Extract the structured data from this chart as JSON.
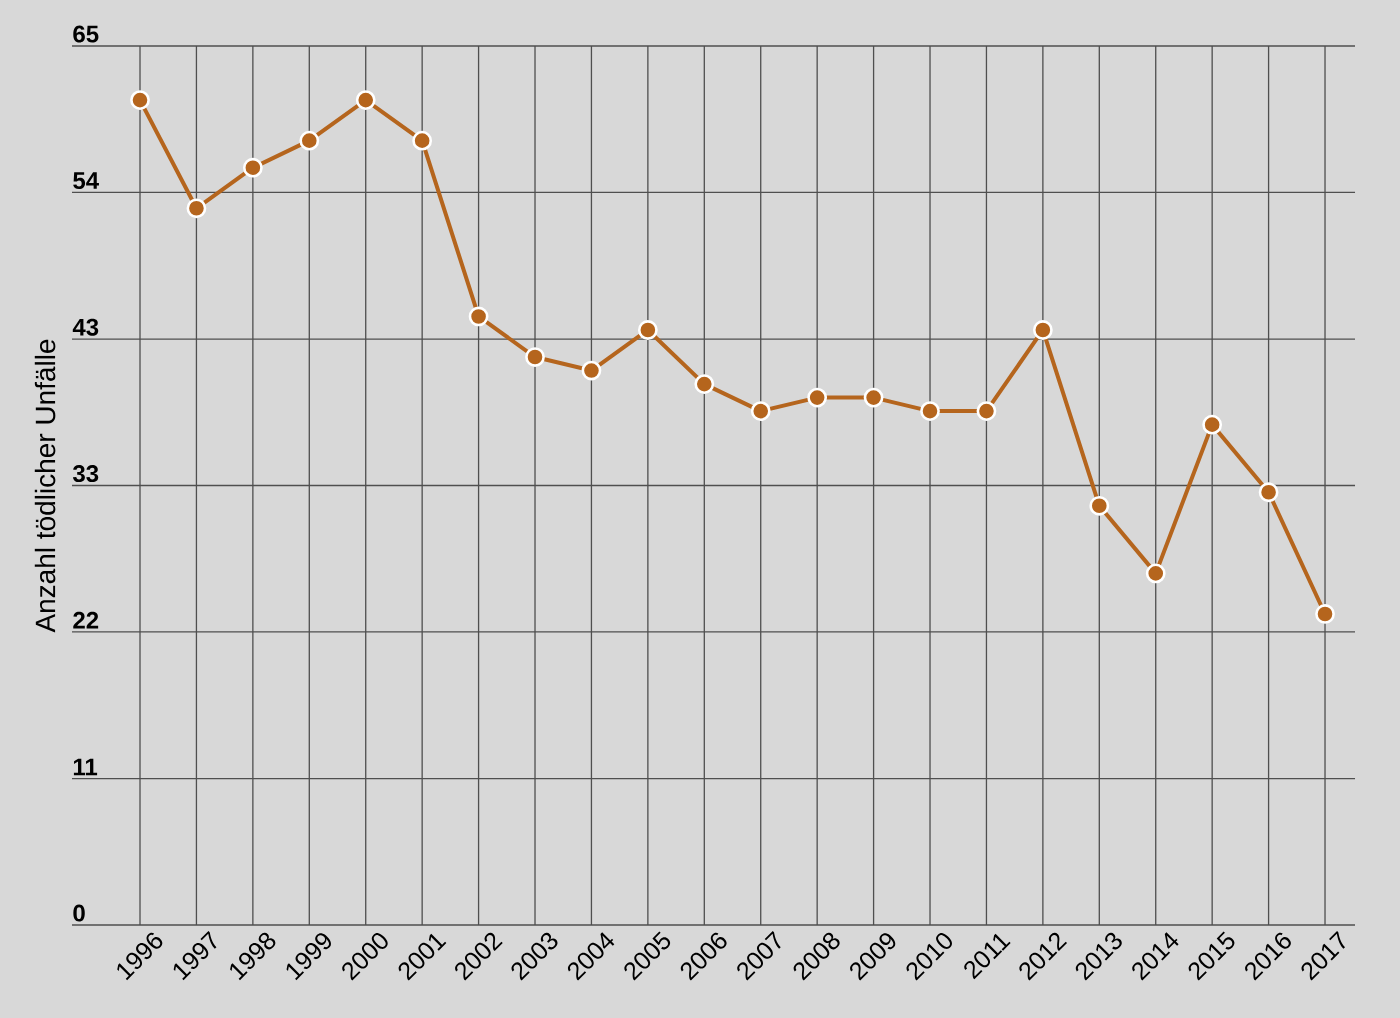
{
  "chart_data": {
    "type": "line",
    "ylabel": "Anzahl tödlicher Unfälle",
    "categories": [
      "1996",
      "1997",
      "1998",
      "1999",
      "2000",
      "2001",
      "2002",
      "2003",
      "2004",
      "2005",
      "2006",
      "2007",
      "2008",
      "2009",
      "2010",
      "2011",
      "2012",
      "2013",
      "2014",
      "2015",
      "2016",
      "2017"
    ],
    "values": [
      61,
      53,
      56,
      58,
      61,
      58,
      45,
      42,
      41,
      44,
      40,
      38,
      39,
      39,
      38,
      38,
      44,
      31,
      26,
      37,
      32,
      23
    ],
    "color": "#b5651d",
    "ylim": [
      0,
      65
    ],
    "yticks": [
      0,
      {
        "value": 10.83,
        "label": "11"
      },
      {
        "value": 21.67,
        "label": "22"
      },
      {
        "value": 32.5,
        "label": "33"
      },
      {
        "value": 43.33,
        "label": "43"
      },
      {
        "value": 54.17,
        "label": "54"
      },
      65
    ],
    "grid": true,
    "marker": "circle",
    "line_style": "solid"
  }
}
